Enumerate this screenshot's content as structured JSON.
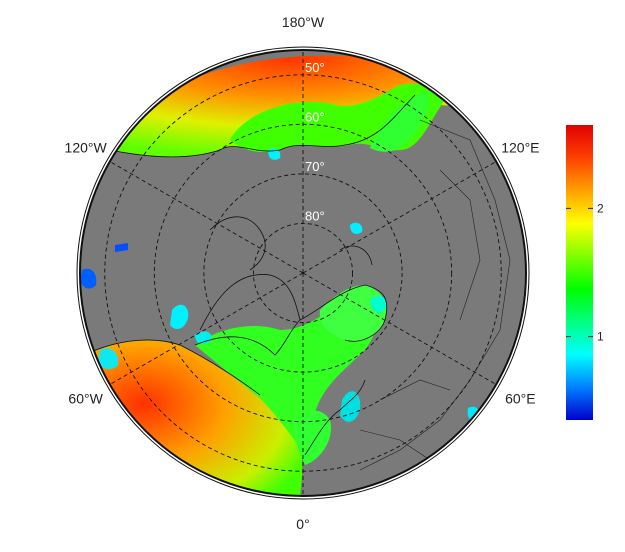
{
  "map": {
    "projection": "north-polar-stereographic",
    "lon_labels": [
      {
        "lon": 180,
        "text": "180°W"
      },
      {
        "lon": -120,
        "text": "120°W"
      },
      {
        "lon": 120,
        "text": "120°E"
      },
      {
        "lon": -60,
        "text": "60°W"
      },
      {
        "lon": 60,
        "text": "60°E"
      },
      {
        "lon": 0,
        "text": "0°"
      }
    ],
    "lat_labels": [
      {
        "lat": 50,
        "text": "50°"
      },
      {
        "lat": 60,
        "text": "60°"
      },
      {
        "lat": 70,
        "text": "70°"
      },
      {
        "lat": 80,
        "text": "80°"
      }
    ],
    "colors": {
      "land": "#7a7a7a",
      "frame": "#111111",
      "graticule": "#111111"
    }
  },
  "colorbar": {
    "ticks": [
      {
        "value": 1,
        "text": "1"
      },
      {
        "value": 2,
        "text": "2"
      }
    ],
    "range": [
      0.35,
      2.65
    ],
    "colors": [
      "#0000cc",
      "#0080ff",
      "#00ffff",
      "#00ff80",
      "#00ff00",
      "#80ff00",
      "#ffff00",
      "#ffa000",
      "#ff4000",
      "#e00000"
    ]
  }
}
